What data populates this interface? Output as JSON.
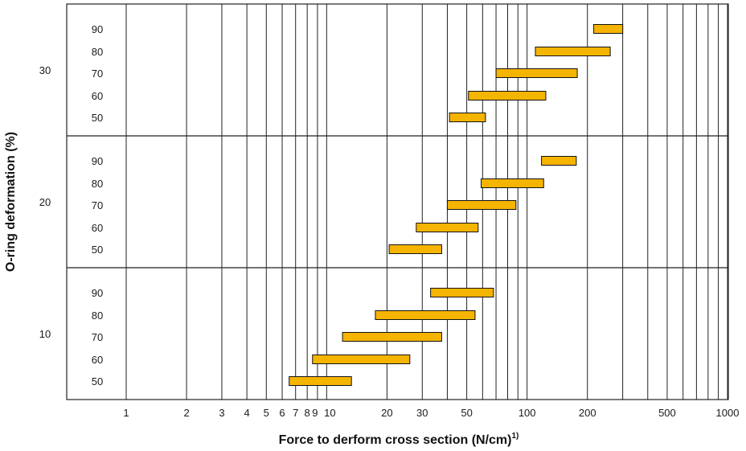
{
  "chart_data": {
    "type": "bar",
    "orientation": "horizontal-range",
    "title": "",
    "xlabel": "Force to derform cross section (N/cm)",
    "xlabel_sup": "1)",
    "ylabel": "O-ring deformation (%)",
    "x_scale": "log",
    "xlim": [
      0.5,
      1000
    ],
    "x_ticks": [
      1,
      2,
      3,
      4,
      5,
      6,
      7,
      8,
      9,
      10,
      20,
      30,
      50,
      100,
      200,
      500,
      1000
    ],
    "x_tick_labels": [
      "1",
      "2",
      "3",
      "4",
      "5",
      "6",
      "7",
      "8",
      "9",
      "10",
      "20",
      "30",
      "50",
      "100",
      "200",
      "500",
      "1000"
    ],
    "grid_lines_x": [
      1,
      2,
      3,
      4,
      5,
      6,
      7,
      8,
      9,
      10,
      20,
      30,
      40,
      50,
      60,
      70,
      80,
      90,
      100,
      200,
      300,
      400,
      500,
      600,
      700,
      800,
      900,
      1000
    ],
    "grid": true,
    "legend": "none",
    "bar_color": "#f5b400",
    "bar_edge": "#111111",
    "groups": [
      {
        "deformation": "30",
        "rows": [
          {
            "label": "90",
            "min": 215,
            "max": 300
          },
          {
            "label": "80",
            "min": 110,
            "max": 260
          },
          {
            "label": "70",
            "min": 70,
            "max": 178
          },
          {
            "label": "60",
            "min": 51,
            "max": 124
          },
          {
            "label": "50",
            "min": 41,
            "max": 62
          }
        ]
      },
      {
        "deformation": "20",
        "rows": [
          {
            "label": "90",
            "min": 118,
            "max": 176
          },
          {
            "label": "80",
            "min": 59,
            "max": 121
          },
          {
            "label": "70",
            "min": 40,
            "max": 88
          },
          {
            "label": "60",
            "min": 28,
            "max": 57
          },
          {
            "label": "50",
            "min": 20.5,
            "max": 37.5
          }
        ]
      },
      {
        "deformation": "10",
        "rows": [
          {
            "label": "90",
            "min": 33,
            "max": 68
          },
          {
            "label": "80",
            "min": 17.5,
            "max": 55
          },
          {
            "label": "70",
            "min": 12,
            "max": 37.5
          },
          {
            "label": "60",
            "min": 8.5,
            "max": 26
          },
          {
            "label": "50",
            "min": 6.5,
            "max": 13.3
          }
        ]
      }
    ]
  }
}
